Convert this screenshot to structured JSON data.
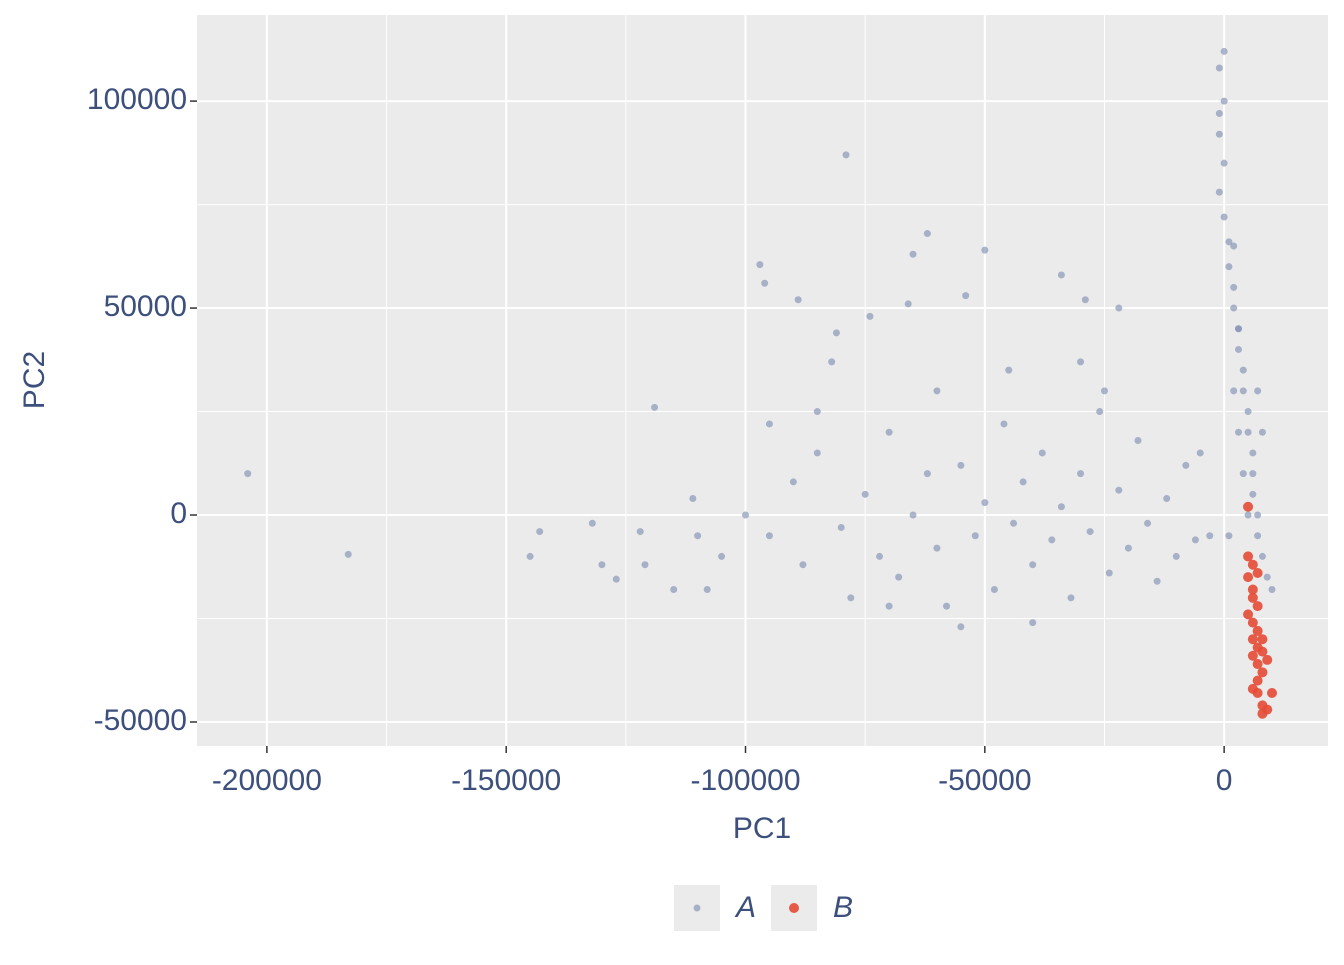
{
  "chart_data": {
    "type": "scatter",
    "x_label": "PC1",
    "y_label": "PC2",
    "xlim": [
      -214600,
      21700
    ],
    "ylim": [
      -55800,
      120800
    ],
    "xticks": [
      -200000,
      -150000,
      -100000,
      -50000,
      0
    ],
    "yticks": [
      -50000,
      0,
      50000,
      100000
    ],
    "x_minor_ticks": [
      -175000,
      -125000,
      -75000,
      -25000
    ],
    "y_minor_ticks": [
      -25000,
      25000,
      75000
    ],
    "grid": true,
    "legend": "bottom",
    "series": [
      {
        "name": "A",
        "color": "#8190b3",
        "x": [
          -204000,
          -183000,
          -145000,
          -143000,
          -132000,
          -130000,
          -127000,
          -122000,
          -119000,
          -121000,
          -115000,
          -111000,
          -108000,
          -97000,
          -96000,
          -89000,
          -79000,
          -81000,
          -82000,
          -62000,
          -65000,
          -54000,
          -50000,
          -34000,
          -29000,
          -22000,
          -66000,
          -74000,
          -100000,
          -95000,
          -90000,
          -88000,
          -85000,
          -80000,
          -78000,
          -75000,
          -72000,
          -70000,
          -68000,
          -65000,
          -62000,
          -60000,
          -58000,
          -55000,
          -52000,
          -50000,
          -48000,
          -46000,
          -44000,
          -42000,
          -40000,
          -38000,
          -36000,
          -34000,
          -32000,
          -30000,
          -28000,
          -26000,
          -24000,
          -22000,
          -20000,
          -18000,
          -16000,
          -14000,
          -12000,
          -10000,
          -8000,
          -6000,
          -55000,
          -40000,
          -70000,
          -105000,
          -95000,
          -60000,
          -45000,
          -30000,
          -25000,
          -85000,
          -110000,
          -5000,
          -3000,
          0,
          -1000,
          -1000,
          -1000,
          0,
          -1000,
          0,
          1000,
          1000,
          2000,
          2000,
          3000,
          3000,
          4000,
          4000,
          5000,
          5000,
          6000,
          6000,
          6000,
          7000,
          7000,
          8000,
          9000,
          10000,
          3000,
          2000,
          4000,
          5000,
          1000,
          3000,
          2000,
          0,
          8000,
          7000
        ],
        "values": [
          10000,
          -9500,
          -10000,
          -4000,
          -2000,
          -12000,
          -15500,
          -4000,
          26000,
          -12000,
          -18000,
          4000,
          -18000,
          60500,
          56000,
          52000,
          87000,
          44000,
          37000,
          68000,
          63000,
          53000,
          64000,
          58000,
          52000,
          50000,
          51000,
          48000,
          0,
          -5000,
          8000,
          -12000,
          15000,
          -3000,
          -20000,
          5000,
          -10000,
          20000,
          -15000,
          0,
          10000,
          -8000,
          -22000,
          12000,
          -5000,
          3000,
          -18000,
          22000,
          -2000,
          8000,
          -12000,
          15000,
          -6000,
          2000,
          -20000,
          10000,
          -4000,
          25000,
          -14000,
          6000,
          -8000,
          18000,
          -2000,
          -16000,
          4000,
          -10000,
          12000,
          -6000,
          -27000,
          -26000,
          -22000,
          -10000,
          22000,
          30000,
          35000,
          37000,
          30000,
          25000,
          -5000,
          15000,
          -5000,
          112000,
          108000,
          97000,
          92000,
          85000,
          78000,
          72000,
          66000,
          60000,
          55000,
          50000,
          45000,
          40000,
          35000,
          30000,
          25000,
          20000,
          15000,
          10000,
          5000,
          0,
          -5000,
          -10000,
          -15000,
          -18000,
          20000,
          30000,
          10000,
          0,
          -5000,
          45000,
          65000,
          100000,
          20000,
          30000
        ]
      },
      {
        "name": "B",
        "color": "#e64b35",
        "x": [
          5000,
          5000,
          6000,
          5000,
          6000,
          7000,
          6000,
          7000,
          5000,
          6000,
          7000,
          6000,
          7000,
          6000,
          8000,
          7000,
          9000,
          8000,
          6000,
          7000,
          10000,
          8000,
          8000,
          9000,
          7000,
          8000
        ],
        "values": [
          2000,
          -10000,
          -12000,
          -15000,
          -18000,
          -14000,
          -20000,
          -22000,
          -24000,
          -26000,
          -28000,
          -30000,
          -32000,
          -34000,
          -33000,
          -36000,
          -35000,
          -38000,
          -42000,
          -43000,
          -43000,
          -46000,
          -48000,
          -47000,
          -40000,
          -30000
        ]
      }
    ]
  }
}
